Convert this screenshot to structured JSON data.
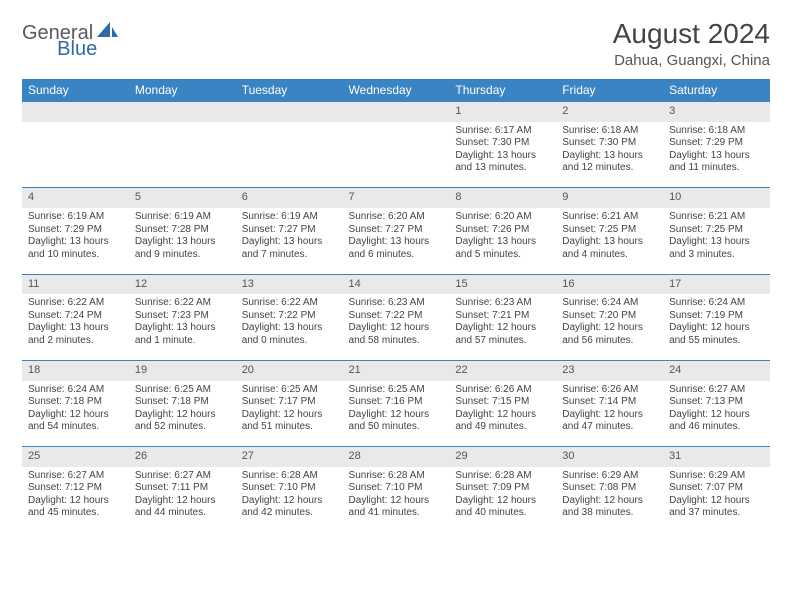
{
  "logo": {
    "part1": "General",
    "part2": "Blue"
  },
  "title": "August 2024",
  "location": "Dahua, Guangxi, China",
  "colors": {
    "header_bg": "#3b84c4",
    "header_text": "#ffffff",
    "daynum_bg": "#e9e9e9",
    "row_divider": "#3b84c4",
    "body_text": "#444444",
    "title_text": "#444444",
    "logo_gray": "#5a5a5a",
    "logo_blue": "#2f6aa8",
    "page_bg": "#ffffff"
  },
  "weekdays": [
    "Sunday",
    "Monday",
    "Tuesday",
    "Wednesday",
    "Thursday",
    "Friday",
    "Saturday"
  ],
  "weeks": [
    [
      null,
      null,
      null,
      null,
      {
        "d": "1",
        "sr": "Sunrise: 6:17 AM",
        "ss": "Sunset: 7:30 PM",
        "dl1": "Daylight: 13 hours",
        "dl2": "and 13 minutes."
      },
      {
        "d": "2",
        "sr": "Sunrise: 6:18 AM",
        "ss": "Sunset: 7:30 PM",
        "dl1": "Daylight: 13 hours",
        "dl2": "and 12 minutes."
      },
      {
        "d": "3",
        "sr": "Sunrise: 6:18 AM",
        "ss": "Sunset: 7:29 PM",
        "dl1": "Daylight: 13 hours",
        "dl2": "and 11 minutes."
      }
    ],
    [
      {
        "d": "4",
        "sr": "Sunrise: 6:19 AM",
        "ss": "Sunset: 7:29 PM",
        "dl1": "Daylight: 13 hours",
        "dl2": "and 10 minutes."
      },
      {
        "d": "5",
        "sr": "Sunrise: 6:19 AM",
        "ss": "Sunset: 7:28 PM",
        "dl1": "Daylight: 13 hours",
        "dl2": "and 9 minutes."
      },
      {
        "d": "6",
        "sr": "Sunrise: 6:19 AM",
        "ss": "Sunset: 7:27 PM",
        "dl1": "Daylight: 13 hours",
        "dl2": "and 7 minutes."
      },
      {
        "d": "7",
        "sr": "Sunrise: 6:20 AM",
        "ss": "Sunset: 7:27 PM",
        "dl1": "Daylight: 13 hours",
        "dl2": "and 6 minutes."
      },
      {
        "d": "8",
        "sr": "Sunrise: 6:20 AM",
        "ss": "Sunset: 7:26 PM",
        "dl1": "Daylight: 13 hours",
        "dl2": "and 5 minutes."
      },
      {
        "d": "9",
        "sr": "Sunrise: 6:21 AM",
        "ss": "Sunset: 7:25 PM",
        "dl1": "Daylight: 13 hours",
        "dl2": "and 4 minutes."
      },
      {
        "d": "10",
        "sr": "Sunrise: 6:21 AM",
        "ss": "Sunset: 7:25 PM",
        "dl1": "Daylight: 13 hours",
        "dl2": "and 3 minutes."
      }
    ],
    [
      {
        "d": "11",
        "sr": "Sunrise: 6:22 AM",
        "ss": "Sunset: 7:24 PM",
        "dl1": "Daylight: 13 hours",
        "dl2": "and 2 minutes."
      },
      {
        "d": "12",
        "sr": "Sunrise: 6:22 AM",
        "ss": "Sunset: 7:23 PM",
        "dl1": "Daylight: 13 hours",
        "dl2": "and 1 minute."
      },
      {
        "d": "13",
        "sr": "Sunrise: 6:22 AM",
        "ss": "Sunset: 7:22 PM",
        "dl1": "Daylight: 13 hours",
        "dl2": "and 0 minutes."
      },
      {
        "d": "14",
        "sr": "Sunrise: 6:23 AM",
        "ss": "Sunset: 7:22 PM",
        "dl1": "Daylight: 12 hours",
        "dl2": "and 58 minutes."
      },
      {
        "d": "15",
        "sr": "Sunrise: 6:23 AM",
        "ss": "Sunset: 7:21 PM",
        "dl1": "Daylight: 12 hours",
        "dl2": "and 57 minutes."
      },
      {
        "d": "16",
        "sr": "Sunrise: 6:24 AM",
        "ss": "Sunset: 7:20 PM",
        "dl1": "Daylight: 12 hours",
        "dl2": "and 56 minutes."
      },
      {
        "d": "17",
        "sr": "Sunrise: 6:24 AM",
        "ss": "Sunset: 7:19 PM",
        "dl1": "Daylight: 12 hours",
        "dl2": "and 55 minutes."
      }
    ],
    [
      {
        "d": "18",
        "sr": "Sunrise: 6:24 AM",
        "ss": "Sunset: 7:18 PM",
        "dl1": "Daylight: 12 hours",
        "dl2": "and 54 minutes."
      },
      {
        "d": "19",
        "sr": "Sunrise: 6:25 AM",
        "ss": "Sunset: 7:18 PM",
        "dl1": "Daylight: 12 hours",
        "dl2": "and 52 minutes."
      },
      {
        "d": "20",
        "sr": "Sunrise: 6:25 AM",
        "ss": "Sunset: 7:17 PM",
        "dl1": "Daylight: 12 hours",
        "dl2": "and 51 minutes."
      },
      {
        "d": "21",
        "sr": "Sunrise: 6:25 AM",
        "ss": "Sunset: 7:16 PM",
        "dl1": "Daylight: 12 hours",
        "dl2": "and 50 minutes."
      },
      {
        "d": "22",
        "sr": "Sunrise: 6:26 AM",
        "ss": "Sunset: 7:15 PM",
        "dl1": "Daylight: 12 hours",
        "dl2": "and 49 minutes."
      },
      {
        "d": "23",
        "sr": "Sunrise: 6:26 AM",
        "ss": "Sunset: 7:14 PM",
        "dl1": "Daylight: 12 hours",
        "dl2": "and 47 minutes."
      },
      {
        "d": "24",
        "sr": "Sunrise: 6:27 AM",
        "ss": "Sunset: 7:13 PM",
        "dl1": "Daylight: 12 hours",
        "dl2": "and 46 minutes."
      }
    ],
    [
      {
        "d": "25",
        "sr": "Sunrise: 6:27 AM",
        "ss": "Sunset: 7:12 PM",
        "dl1": "Daylight: 12 hours",
        "dl2": "and 45 minutes."
      },
      {
        "d": "26",
        "sr": "Sunrise: 6:27 AM",
        "ss": "Sunset: 7:11 PM",
        "dl1": "Daylight: 12 hours",
        "dl2": "and 44 minutes."
      },
      {
        "d": "27",
        "sr": "Sunrise: 6:28 AM",
        "ss": "Sunset: 7:10 PM",
        "dl1": "Daylight: 12 hours",
        "dl2": "and 42 minutes."
      },
      {
        "d": "28",
        "sr": "Sunrise: 6:28 AM",
        "ss": "Sunset: 7:10 PM",
        "dl1": "Daylight: 12 hours",
        "dl2": "and 41 minutes."
      },
      {
        "d": "29",
        "sr": "Sunrise: 6:28 AM",
        "ss": "Sunset: 7:09 PM",
        "dl1": "Daylight: 12 hours",
        "dl2": "and 40 minutes."
      },
      {
        "d": "30",
        "sr": "Sunrise: 6:29 AM",
        "ss": "Sunset: 7:08 PM",
        "dl1": "Daylight: 12 hours",
        "dl2": "and 38 minutes."
      },
      {
        "d": "31",
        "sr": "Sunrise: 6:29 AM",
        "ss": "Sunset: 7:07 PM",
        "dl1": "Daylight: 12 hours",
        "dl2": "and 37 minutes."
      }
    ]
  ]
}
